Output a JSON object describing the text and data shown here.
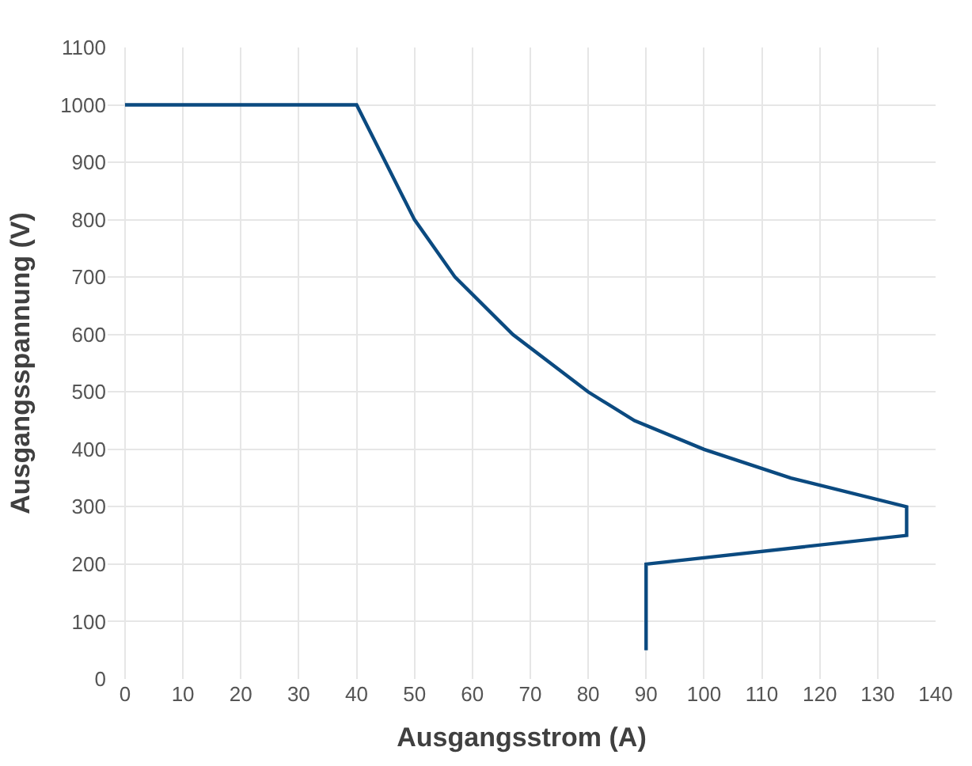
{
  "chart_data": {
    "type": "line",
    "xlabel": "Ausgangsstrom (A)",
    "ylabel": "Ausgangsspannung (V)",
    "x": [
      0,
      40,
      45,
      50,
      57,
      67,
      80,
      88,
      100,
      115,
      135,
      135,
      90,
      90
    ],
    "series": [
      {
        "color": "#0b4a80",
        "values": [
          1000,
          1000,
          900,
          800,
          700,
          600,
          500,
          450,
          400,
          350,
          300,
          250,
          200,
          50
        ]
      }
    ],
    "xlim": [
      -3,
      140
    ],
    "xticks": [
      0,
      10,
      20,
      30,
      40,
      50,
      60,
      70,
      80,
      90,
      100,
      110,
      120,
      130,
      140
    ],
    "ylim": [
      0,
      1100
    ],
    "yticks": [
      0,
      100,
      200,
      300,
      400,
      500,
      600,
      700,
      800,
      900,
      1000,
      1100
    ],
    "grid": true,
    "marker": "none",
    "line_style": "solid"
  }
}
